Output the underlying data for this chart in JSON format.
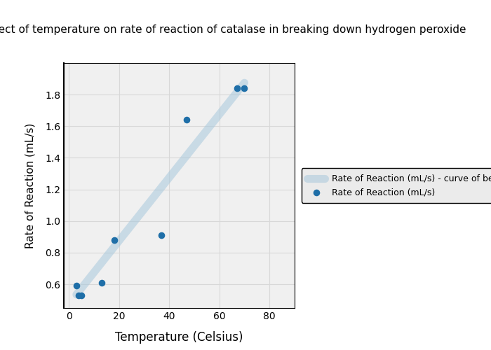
{
  "title": "The effect of temperature on rate of reaction of catalase in breaking down hydrogen peroxide",
  "xlabel": "Temperature (Celsius)",
  "ylabel": "Rate of Reaction (mL/s)",
  "scatter_x": [
    3,
    4,
    5,
    13,
    18,
    37,
    47,
    67,
    70
  ],
  "scatter_y": [
    0.59,
    0.53,
    0.53,
    0.61,
    0.88,
    0.91,
    1.64,
    1.84,
    1.84
  ],
  "fit_x": [
    3,
    70
  ],
  "fit_y": [
    0.535,
    1.875
  ],
  "scatter_color": "#1f6fa8",
  "line_color": "#a8c8dc",
  "xlim": [
    -2,
    90
  ],
  "ylim": [
    0.45,
    2.0
  ],
  "xticks": [
    0,
    20,
    40,
    60,
    80
  ],
  "yticks": [
    0.6,
    0.8,
    1.0,
    1.2,
    1.4,
    1.6,
    1.8
  ],
  "legend_scatter": "Rate of Reaction (mL/s)",
  "legend_line": "Rate of Reaction (mL/s) - curve of best fit",
  "scatter_size": 35,
  "line_width": 8,
  "line_alpha": 0.55,
  "grid_color": "#d8d8d8",
  "bg_color": "#f0f0f0"
}
